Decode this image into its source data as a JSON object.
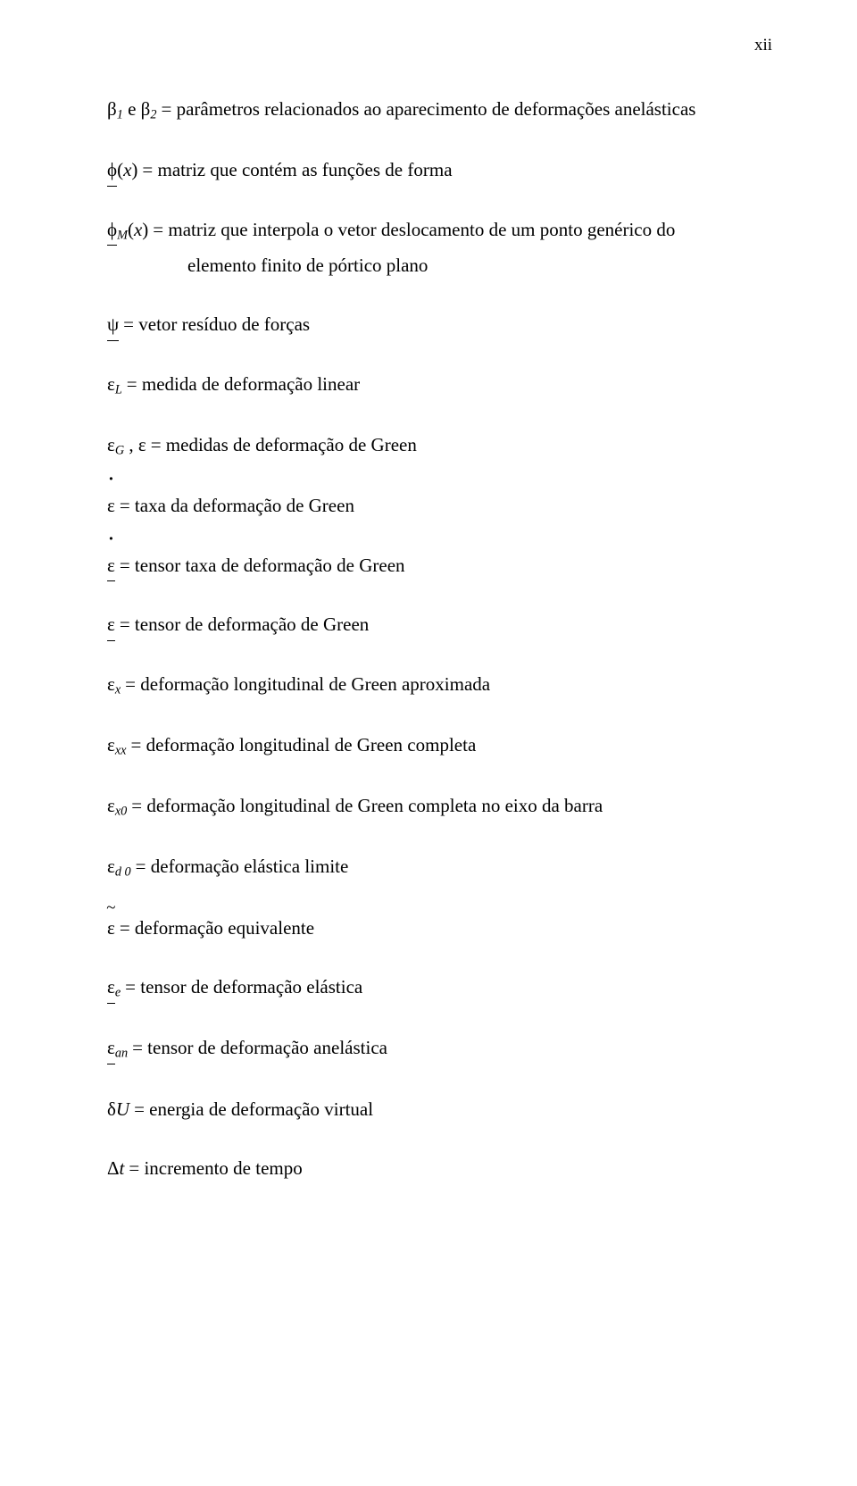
{
  "page_number": "xii",
  "font": {
    "family": "Times New Roman",
    "body_size_pt": 16,
    "color": "#000000"
  },
  "background_color": "#ffffff",
  "defs": [
    {
      "symbol_html": "β<sub class='it'>1</sub> e β<sub class='it'>2</sub>",
      "desc": "= parâmetros relacionados ao aparecimento de deformações anelásticas"
    },
    {
      "symbol_html": "<span class='under'>ϕ</span>(<span class='it'>x</span>)",
      "desc": "= matriz que contém as funções de forma"
    },
    {
      "symbol_html": "<span class='under'>ϕ</span><sub class='it'>M</sub>(<span class='it'>x</span>)",
      "desc": "= matriz que interpola o vetor deslocamento de um ponto genérico do"
    },
    {
      "continuation": true,
      "desc": "elemento finito de pórtico plano"
    },
    {
      "symbol_html": "<span class='under'>ψ</span>",
      "desc": "= vetor resíduo de forças"
    },
    {
      "symbol_html": "ε<sub class='it'>L</sub>",
      "desc": "= medida de deformação linear"
    },
    {
      "symbol_html": "ε<sub class='it'>G</sub> , ε",
      "desc": "= medidas de deformação de Green"
    },
    {
      "symbol_html": "<span class='dot-over'>ε</span>",
      "desc": "= taxa da deformação de Green"
    },
    {
      "symbol_html": "<span class='under'><span class='dot-over'>ε</span></span>",
      "desc": "= tensor taxa de deformação de Green"
    },
    {
      "symbol_html": "<span class='under'>ε</span>",
      "desc": "= tensor de deformação de Green"
    },
    {
      "symbol_html": "ε<sub class='it'>x</sub>",
      "desc": "= deformação longitudinal de Green aproximada"
    },
    {
      "symbol_html": "ε<sub class='it'>xx</sub>",
      "desc": "= deformação longitudinal de Green completa"
    },
    {
      "symbol_html": "ε<sub class='it'>x0</sub>",
      "desc": "= deformação longitudinal de Green completa no eixo da barra"
    },
    {
      "symbol_html": "ε<sub class='it'>d 0</sub>",
      "desc": "= deformação elástica limite"
    },
    {
      "symbol_html": "<span class='tilde-over'>ε</span>",
      "desc": "= deformação equivalente"
    },
    {
      "symbol_html": "<span class='under'>ε</span><sub class='it'>e</sub>",
      "desc": "= tensor de deformação elástica"
    },
    {
      "symbol_html": "<span class='under'>ε</span><sub class='it'>an</sub>",
      "desc": "= tensor de deformação anelástica"
    },
    {
      "symbol_html": "δ<span class='it'>U</span>",
      "desc": "= energia de deformação virtual"
    },
    {
      "symbol_html": "Δ<span class='it'>t</span>",
      "desc": "= incremento de tempo"
    }
  ]
}
